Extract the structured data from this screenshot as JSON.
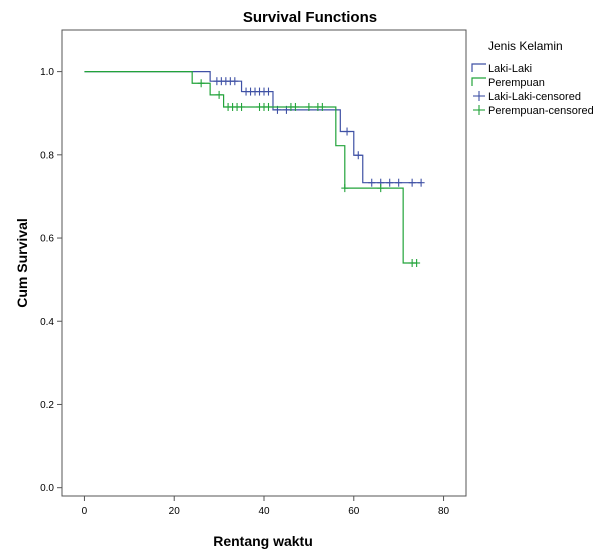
{
  "chart_data": {
    "type": "line",
    "subtype": "step",
    "title": "Survival Functions",
    "xlabel": "Rentang waktu",
    "ylabel": "Cum Survival",
    "xlim": [
      -5,
      85
    ],
    "ylim": [
      -0.02,
      1.1
    ],
    "xticks": [
      0,
      20,
      40,
      60,
      80
    ],
    "yticks": [
      0.0,
      0.2,
      0.4,
      0.6,
      0.8,
      1.0
    ],
    "xtick_labels": [
      "0",
      "20",
      "40",
      "60",
      "80"
    ],
    "ytick_labels": [
      "0.0",
      "0.2",
      "0.4",
      "0.6",
      "0.8",
      "1.0"
    ],
    "grid": false,
    "legend": {
      "title": "Jenis Kelamin",
      "position": "top-right-outside",
      "entries": [
        {
          "label": "Laki-Laki",
          "color": "#3f51a5",
          "kind": "step"
        },
        {
          "label": "Perempuan",
          "color": "#22a33a",
          "kind": "step"
        },
        {
          "label": "Laki-Laki-censored",
          "color": "#3f51a5",
          "kind": "censor"
        },
        {
          "label": "Perempuan-censored",
          "color": "#22a33a",
          "kind": "censor"
        }
      ]
    },
    "series": [
      {
        "name": "Laki-Laki",
        "color": "#3f51a5",
        "steps": [
          [
            0,
            1.0
          ],
          [
            28,
            0.977
          ],
          [
            35,
            0.952
          ],
          [
            42,
            0.908
          ],
          [
            57,
            0.856
          ],
          [
            60,
            0.799
          ],
          [
            62,
            0.733
          ],
          [
            75,
            0.733
          ]
        ],
        "censored": [
          [
            29.5,
            0.977
          ],
          [
            30.5,
            0.977
          ],
          [
            31.5,
            0.977
          ],
          [
            32.5,
            0.977
          ],
          [
            33.5,
            0.977
          ],
          [
            36,
            0.952
          ],
          [
            37,
            0.952
          ],
          [
            38,
            0.952
          ],
          [
            39,
            0.952
          ],
          [
            40,
            0.952
          ],
          [
            41,
            0.952
          ],
          [
            43,
            0.908
          ],
          [
            45,
            0.908
          ],
          [
            58.5,
            0.856
          ],
          [
            61,
            0.799
          ],
          [
            64,
            0.733
          ],
          [
            66,
            0.733
          ],
          [
            68,
            0.733
          ],
          [
            70,
            0.733
          ],
          [
            73,
            0.733
          ],
          [
            75,
            0.733
          ]
        ]
      },
      {
        "name": "Perempuan",
        "color": "#22a33a",
        "steps": [
          [
            0,
            1.0
          ],
          [
            24,
            0.972
          ],
          [
            28,
            0.944
          ],
          [
            31,
            0.915
          ],
          [
            56,
            0.822
          ],
          [
            58,
            0.72
          ],
          [
            71,
            0.54
          ],
          [
            74,
            0.54
          ]
        ],
        "censored": [
          [
            26,
            0.972
          ],
          [
            30,
            0.944
          ],
          [
            32,
            0.915
          ],
          [
            33,
            0.915
          ],
          [
            34,
            0.915
          ],
          [
            35,
            0.915
          ],
          [
            39,
            0.915
          ],
          [
            40,
            0.915
          ],
          [
            41,
            0.915
          ],
          [
            46,
            0.915
          ],
          [
            47,
            0.915
          ],
          [
            50,
            0.915
          ],
          [
            52,
            0.915
          ],
          [
            53,
            0.915
          ],
          [
            58,
            0.72
          ],
          [
            66,
            0.72
          ],
          [
            73,
            0.54
          ],
          [
            74,
            0.54
          ]
        ]
      }
    ]
  }
}
